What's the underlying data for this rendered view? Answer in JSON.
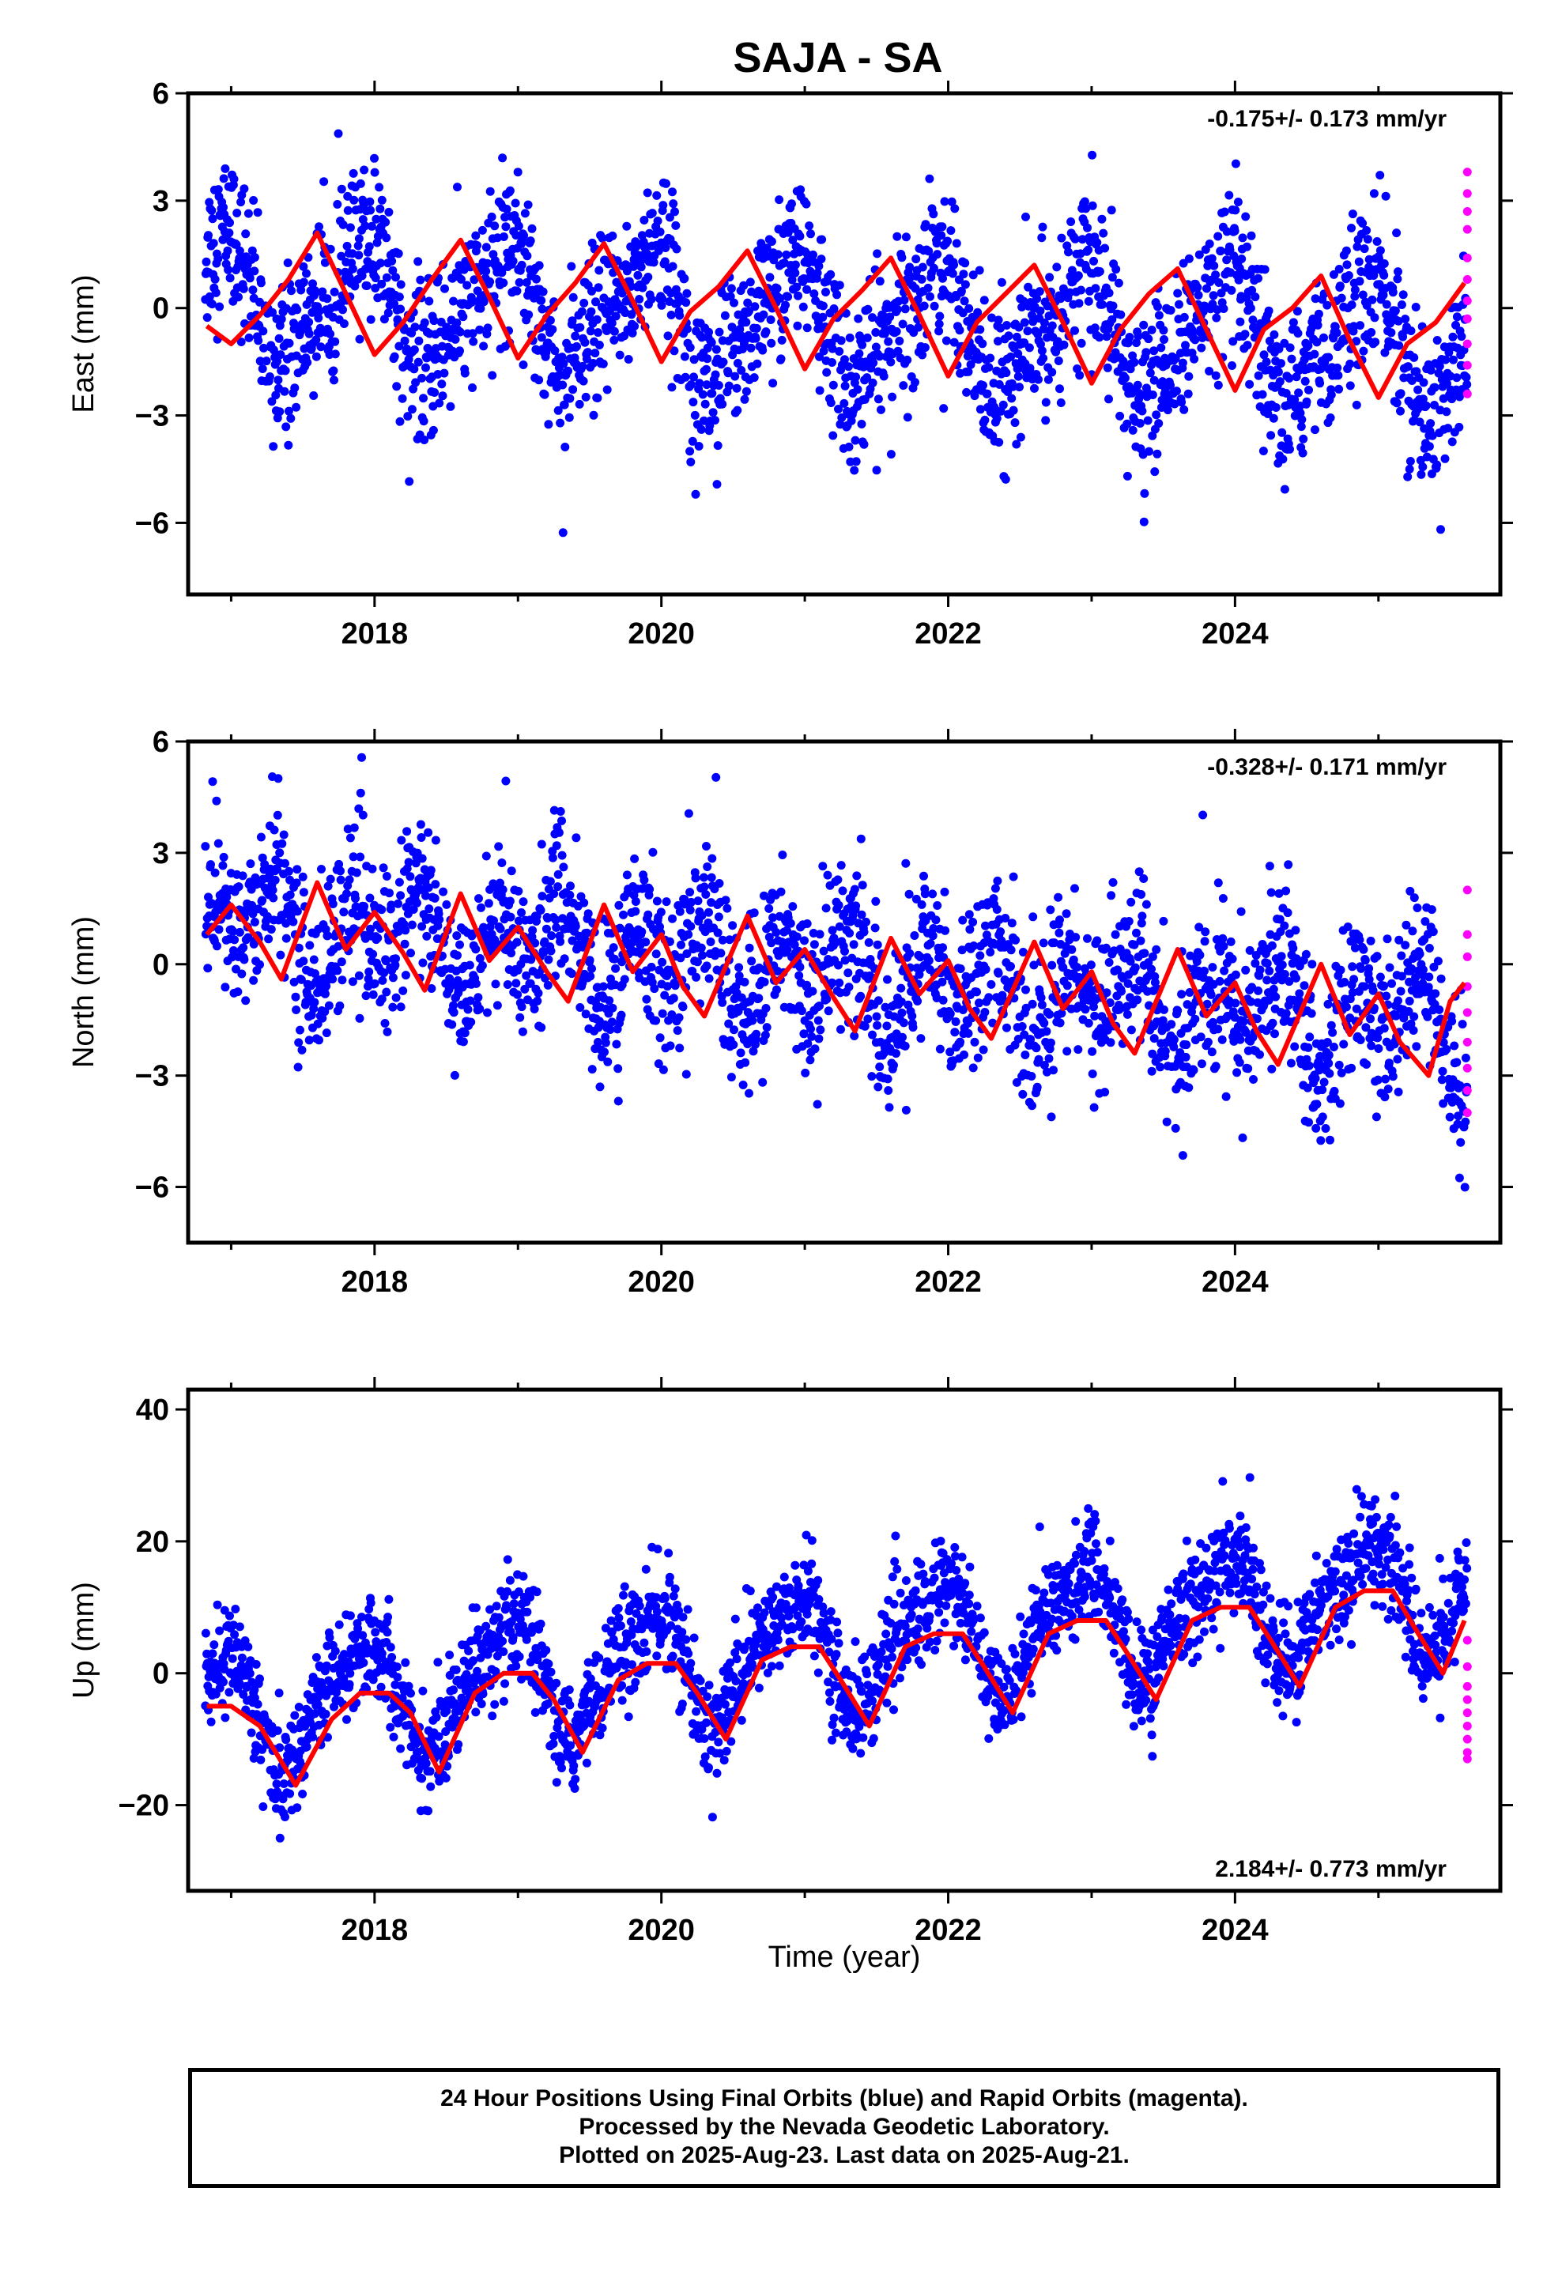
{
  "title": "SAJA - SA",
  "xlabel": "Time (year)",
  "footer": {
    "line1": "24 Hour Positions Using Final Orbits (blue) and Rapid Orbits (magenta).",
    "line2": "Processed by the Nevada Geodetic Laboratory.",
    "line3": "Plotted on 2025-Aug-23. Last data on 2025-Aug-21."
  },
  "colors": {
    "final": "#0000ff",
    "rapid": "#ff00ff",
    "model": "#ff0000"
  },
  "chart_data": [
    {
      "type": "scatter",
      "component": "East",
      "ylabel": "East (mm)",
      "rate": "-0.175+/- 0.173 mm/yr",
      "rate_position": "top-right",
      "xlim": [
        2016.7,
        2025.85
      ],
      "ylim": [
        -8,
        6
      ],
      "x_ticks": [
        2018,
        2020,
        2022,
        2024
      ],
      "y_ticks": [
        -6,
        -3,
        0,
        3,
        6
      ],
      "y_tick_labels": [
        "−6",
        "−3",
        "0",
        "3",
        "6"
      ],
      "x_start": 2016.82,
      "x_end": 2025.62,
      "model": {
        "offset": 0.4,
        "trend": -0.175,
        "annual_amp": 1.6,
        "annual_phase": 0.35,
        "semi_amp": 0.5,
        "semi_phase": 0.1,
        "scatter": 1.1
      },
      "model_curve": [
        [
          2016.83,
          -0.5
        ],
        [
          2017.0,
          -1.0
        ],
        [
          2017.2,
          -0.2
        ],
        [
          2017.4,
          0.8
        ],
        [
          2017.6,
          2.1
        ],
        [
          2017.8,
          0.4
        ],
        [
          2018.0,
          -1.3
        ],
        [
          2018.2,
          -0.4
        ],
        [
          2018.4,
          0.8
        ],
        [
          2018.6,
          1.9
        ],
        [
          2018.8,
          0.3
        ],
        [
          2019.0,
          -1.4
        ],
        [
          2019.2,
          -0.2
        ],
        [
          2019.4,
          0.7
        ],
        [
          2019.6,
          1.8
        ],
        [
          2019.8,
          0.2
        ],
        [
          2020.0,
          -1.5
        ],
        [
          2020.2,
          -0.1
        ],
        [
          2020.4,
          0.6
        ],
        [
          2020.6,
          1.6
        ],
        [
          2020.8,
          0.0
        ],
        [
          2021.0,
          -1.7
        ],
        [
          2021.2,
          -0.3
        ],
        [
          2021.4,
          0.5
        ],
        [
          2021.6,
          1.4
        ],
        [
          2021.8,
          -0.2
        ],
        [
          2022.0,
          -1.9
        ],
        [
          2022.2,
          -0.4
        ],
        [
          2022.4,
          0.4
        ],
        [
          2022.6,
          1.2
        ],
        [
          2022.8,
          -0.4
        ],
        [
          2023.0,
          -2.1
        ],
        [
          2023.2,
          -0.6
        ],
        [
          2023.4,
          0.4
        ],
        [
          2023.6,
          1.1
        ],
        [
          2023.8,
          -0.6
        ],
        [
          2024.0,
          -2.3
        ],
        [
          2024.2,
          -0.6
        ],
        [
          2024.4,
          0.0
        ],
        [
          2024.6,
          0.9
        ],
        [
          2024.8,
          -0.9
        ],
        [
          2025.0,
          -2.5
        ],
        [
          2025.2,
          -1.0
        ],
        [
          2025.4,
          -0.4
        ],
        [
          2025.6,
          0.7
        ]
      ],
      "rapid_points": [
        [
          2025.62,
          3.8
        ],
        [
          2025.62,
          3.2
        ],
        [
          2025.62,
          2.7
        ],
        [
          2025.62,
          2.2
        ],
        [
          2025.62,
          1.4
        ],
        [
          2025.62,
          0.8
        ],
        [
          2025.62,
          0.2
        ],
        [
          2025.62,
          -0.3
        ],
        [
          2025.62,
          -1.0
        ],
        [
          2025.62,
          -1.6
        ],
        [
          2025.62,
          -2.4
        ]
      ]
    },
    {
      "type": "scatter",
      "component": "North",
      "ylabel": "North (mm)",
      "rate": "-0.328+/- 0.171 mm/yr",
      "rate_position": "top-right",
      "xlim": [
        2016.7,
        2025.85
      ],
      "ylim": [
        -7.5,
        6
      ],
      "x_ticks": [
        2018,
        2020,
        2022,
        2024
      ],
      "y_ticks": [
        -6,
        -3,
        0,
        3,
        6
      ],
      "y_tick_labels": [
        "−6",
        "−3",
        "0",
        "3",
        "6"
      ],
      "x_start": 2016.82,
      "x_end": 2025.62,
      "model": {
        "offset": 1.2,
        "trend": -0.328,
        "annual_amp": 0.6,
        "annual_phase": 0.1,
        "semi_amp": 1.0,
        "semi_phase": 0.3,
        "scatter": 1.1
      },
      "model_curve": [
        [
          2016.83,
          0.8
        ],
        [
          2017.0,
          1.6
        ],
        [
          2017.2,
          0.6
        ],
        [
          2017.35,
          -0.4
        ],
        [
          2017.6,
          2.2
        ],
        [
          2017.8,
          0.4
        ],
        [
          2018.0,
          1.4
        ],
        [
          2018.2,
          0.3
        ],
        [
          2018.35,
          -0.7
        ],
        [
          2018.6,
          1.9
        ],
        [
          2018.8,
          0.1
        ],
        [
          2019.0,
          1.0
        ],
        [
          2019.2,
          -0.2
        ],
        [
          2019.35,
          -1.0
        ],
        [
          2019.6,
          1.6
        ],
        [
          2019.8,
          -0.2
        ],
        [
          2020.0,
          0.8
        ],
        [
          2020.15,
          -0.6
        ],
        [
          2020.3,
          -1.4
        ],
        [
          2020.6,
          1.3
        ],
        [
          2020.8,
          -0.5
        ],
        [
          2021.0,
          0.4
        ],
        [
          2021.2,
          -0.9
        ],
        [
          2021.35,
          -1.8
        ],
        [
          2021.6,
          0.7
        ],
        [
          2021.8,
          -0.8
        ],
        [
          2022.0,
          0.1
        ],
        [
          2022.15,
          -1.2
        ],
        [
          2022.3,
          -2.0
        ],
        [
          2022.6,
          0.6
        ],
        [
          2022.8,
          -1.2
        ],
        [
          2023.0,
          -0.2
        ],
        [
          2023.15,
          -1.6
        ],
        [
          2023.3,
          -2.4
        ],
        [
          2023.6,
          0.4
        ],
        [
          2023.8,
          -1.4
        ],
        [
          2024.0,
          -0.5
        ],
        [
          2024.15,
          -1.8
        ],
        [
          2024.3,
          -2.7
        ],
        [
          2024.6,
          0.0
        ],
        [
          2024.8,
          -1.9
        ],
        [
          2025.0,
          -0.8
        ],
        [
          2025.15,
          -2.1
        ],
        [
          2025.35,
          -3.0
        ],
        [
          2025.5,
          -1.0
        ],
        [
          2025.6,
          -0.5
        ]
      ],
      "rapid_points": [
        [
          2025.62,
          2.0
        ],
        [
          2025.62,
          0.8
        ],
        [
          2025.62,
          0.2
        ],
        [
          2025.62,
          -0.6
        ],
        [
          2025.62,
          -1.3
        ],
        [
          2025.62,
          -2.1
        ],
        [
          2025.62,
          -2.8
        ],
        [
          2025.62,
          -3.4
        ],
        [
          2025.62,
          -4.0
        ]
      ]
    },
    {
      "type": "scatter",
      "component": "Up",
      "ylabel": "Up (mm)",
      "rate": "2.184+/- 0.773 mm/yr",
      "rate_position": "bottom-right",
      "xlim": [
        2016.7,
        2025.85
      ],
      "ylim": [
        -33,
        43
      ],
      "x_ticks": [
        2018,
        2020,
        2022,
        2024
      ],
      "y_ticks": [
        -20,
        0,
        20,
        40
      ],
      "y_tick_labels": [
        "−20",
        "0",
        "20",
        "40"
      ],
      "x_start": 2016.82,
      "x_end": 2025.62,
      "model": {
        "offset": -6.0,
        "trend": 2.184,
        "annual_amp": 8.0,
        "annual_phase": 0.35,
        "semi_amp": 2.5,
        "semi_phase": 0.05,
        "scatter": 4.0
      },
      "model_curve": [
        [
          2016.83,
          -5
        ],
        [
          2017.0,
          -5
        ],
        [
          2017.2,
          -8
        ],
        [
          2017.45,
          -17
        ],
        [
          2017.7,
          -7
        ],
        [
          2017.9,
          -3
        ],
        [
          2018.1,
          -3
        ],
        [
          2018.25,
          -6
        ],
        [
          2018.45,
          -15
        ],
        [
          2018.7,
          -3
        ],
        [
          2018.9,
          0
        ],
        [
          2019.1,
          0
        ],
        [
          2019.25,
          -4
        ],
        [
          2019.45,
          -12
        ],
        [
          2019.7,
          -1
        ],
        [
          2019.9,
          1.5
        ],
        [
          2020.1,
          1.5
        ],
        [
          2020.25,
          -3
        ],
        [
          2020.45,
          -10
        ],
        [
          2020.7,
          2
        ],
        [
          2020.9,
          4
        ],
        [
          2021.1,
          4
        ],
        [
          2021.25,
          -1
        ],
        [
          2021.45,
          -8
        ],
        [
          2021.7,
          4
        ],
        [
          2021.9,
          6
        ],
        [
          2022.1,
          6
        ],
        [
          2022.25,
          1
        ],
        [
          2022.45,
          -6
        ],
        [
          2022.7,
          6
        ],
        [
          2022.9,
          8
        ],
        [
          2023.1,
          8
        ],
        [
          2023.25,
          3
        ],
        [
          2023.45,
          -4
        ],
        [
          2023.7,
          8
        ],
        [
          2023.9,
          10
        ],
        [
          2024.1,
          10
        ],
        [
          2024.25,
          5
        ],
        [
          2024.45,
          -2
        ],
        [
          2024.7,
          10
        ],
        [
          2024.9,
          12.5
        ],
        [
          2025.1,
          12.5
        ],
        [
          2025.25,
          7
        ],
        [
          2025.45,
          0
        ],
        [
          2025.6,
          8
        ]
      ],
      "rapid_points": [
        [
          2025.62,
          5
        ],
        [
          2025.62,
          1
        ],
        [
          2025.62,
          -2
        ],
        [
          2025.62,
          -4
        ],
        [
          2025.62,
          -6
        ],
        [
          2025.62,
          -8
        ],
        [
          2025.62,
          -10
        ],
        [
          2025.62,
          -12
        ],
        [
          2025.62,
          -13
        ]
      ]
    }
  ]
}
